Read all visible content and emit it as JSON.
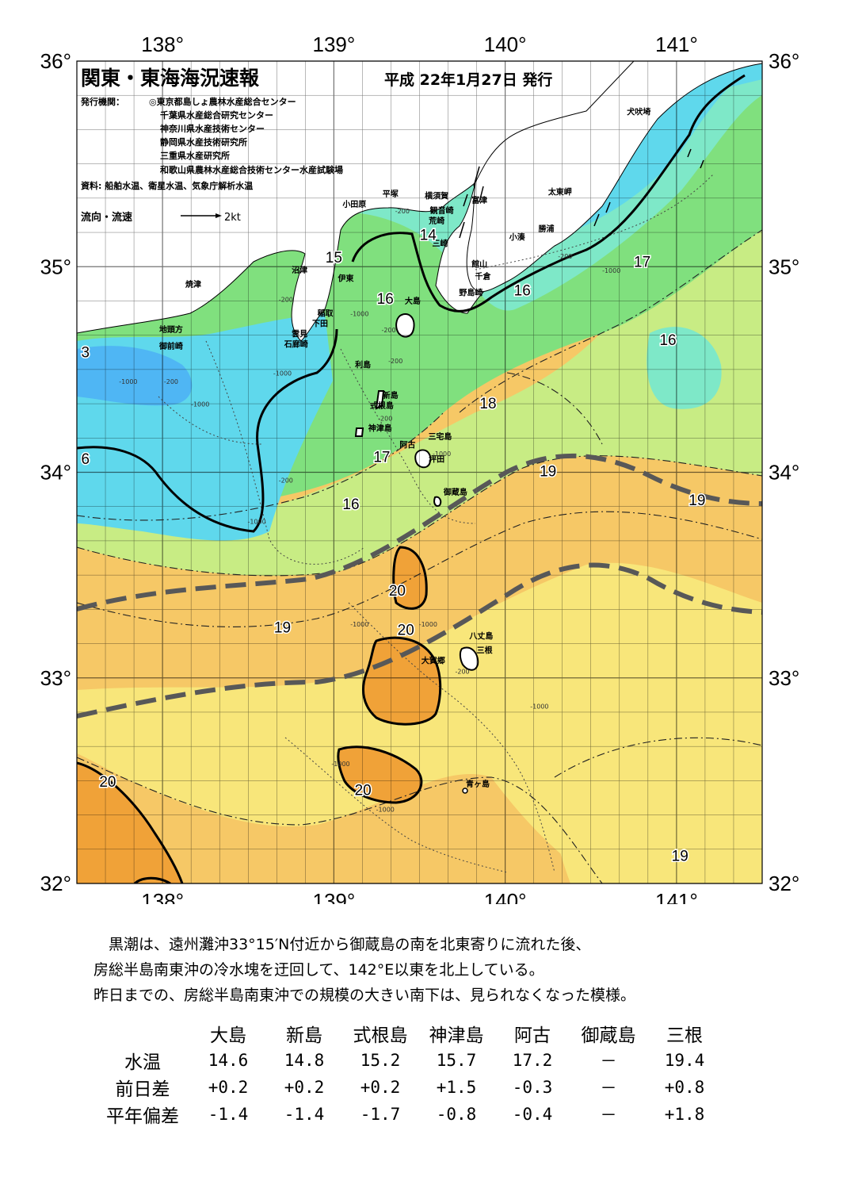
{
  "title": "関東・東海海況速報",
  "issue_date": "平成 22年1月27日 発行",
  "issuers_label": "発行機関：",
  "issuers": [
    "◎東京都島しょ農林水産総合センター",
    "千葉県水産総合研究センター",
    "神奈川県水産技術センター",
    "静岡県水産技術研究所",
    "三重県水産研究所",
    "和歌山県農林水産総合技術センター水産試験場"
  ],
  "sources": "資料: 船舶水温、衛星水温、気象庁解析水温",
  "current_legend": {
    "label": "流向・流速",
    "scale": "2kt"
  },
  "axes": {
    "lon_labels": [
      "138°",
      "139°",
      "140°",
      "141°"
    ],
    "lat_labels": [
      "36°",
      "35°",
      "34°",
      "33°",
      "32°"
    ],
    "lon_range": [
      137.5,
      141.5
    ],
    "lat_range": [
      32,
      36
    ]
  },
  "temperature_labels": [
    {
      "text": "15",
      "lon": 139.0,
      "lat": 35.02
    },
    {
      "text": "14",
      "lon": 139.55,
      "lat": 35.13
    },
    {
      "text": "16",
      "lon": 139.3,
      "lat": 34.82
    },
    {
      "text": "16",
      "lon": 140.1,
      "lat": 34.86
    },
    {
      "text": "17",
      "lon": 140.8,
      "lat": 35.0
    },
    {
      "text": "16",
      "lon": 140.95,
      "lat": 34.62
    },
    {
      "text": "18",
      "lon": 139.9,
      "lat": 34.31
    },
    {
      "text": "17",
      "lon": 139.28,
      "lat": 34.05
    },
    {
      "text": "16",
      "lon": 139.1,
      "lat": 33.82
    },
    {
      "text": "19",
      "lon": 140.25,
      "lat": 33.98
    },
    {
      "text": "19",
      "lon": 141.12,
      "lat": 33.84
    },
    {
      "text": "20",
      "lon": 139.37,
      "lat": 33.4
    },
    {
      "text": "19",
      "lon": 138.7,
      "lat": 33.22
    },
    {
      "text": "20",
      "lon": 139.42,
      "lat": 33.21
    },
    {
      "text": "20",
      "lon": 137.68,
      "lat": 32.47
    },
    {
      "text": "20",
      "lon": 139.17,
      "lat": 32.43
    },
    {
      "text": "19",
      "lon": 141.02,
      "lat": 32.11
    },
    {
      "text": "3",
      "lon": 137.55,
      "lat": 34.56
    },
    {
      "text": "6",
      "lon": 137.55,
      "lat": 34.04
    }
  ],
  "place_names": [
    {
      "text": "犬吠埼",
      "lon": 140.78,
      "lat": 35.74
    },
    {
      "text": "太東岬",
      "lon": 140.32,
      "lat": 35.35
    },
    {
      "text": "勝浦",
      "lon": 140.24,
      "lat": 35.17
    },
    {
      "text": "小湊",
      "lon": 140.07,
      "lat": 35.13
    },
    {
      "text": "富津",
      "lon": 139.85,
      "lat": 35.31
    },
    {
      "text": "横須賀",
      "lon": 139.6,
      "lat": 35.33
    },
    {
      "text": "平塚",
      "lon": 139.33,
      "lat": 35.34
    },
    {
      "text": "観音崎",
      "lon": 139.63,
      "lat": 35.26
    },
    {
      "text": "荒崎",
      "lon": 139.6,
      "lat": 35.21
    },
    {
      "text": "三崎",
      "lon": 139.62,
      "lat": 35.1
    },
    {
      "text": "小田原",
      "lon": 139.12,
      "lat": 35.29
    },
    {
      "text": "館山",
      "lon": 139.85,
      "lat": 35.0
    },
    {
      "text": "千倉",
      "lon": 139.87,
      "lat": 34.94
    },
    {
      "text": "野島崎",
      "lon": 139.8,
      "lat": 34.86
    },
    {
      "text": "大島",
      "lon": 139.46,
      "lat": 34.82
    },
    {
      "text": "沼津",
      "lon": 138.8,
      "lat": 34.97
    },
    {
      "text": "伊東",
      "lon": 139.07,
      "lat": 34.93
    },
    {
      "text": "焼津",
      "lon": 138.18,
      "lat": 34.9
    },
    {
      "text": "稲取",
      "lon": 138.95,
      "lat": 34.76
    },
    {
      "text": "下田",
      "lon": 138.92,
      "lat": 34.71
    },
    {
      "text": "雲見",
      "lon": 138.8,
      "lat": 34.66
    },
    {
      "text": "石廊崎",
      "lon": 138.78,
      "lat": 34.61
    },
    {
      "text": "地頭方",
      "lon": 138.05,
      "lat": 34.68
    },
    {
      "text": "御前崎",
      "lon": 138.05,
      "lat": 34.6
    },
    {
      "text": "利島",
      "lon": 139.17,
      "lat": 34.51
    },
    {
      "text": "新島",
      "lon": 139.33,
      "lat": 34.36
    },
    {
      "text": "式根島",
      "lon": 139.28,
      "lat": 34.31
    },
    {
      "text": "神津島",
      "lon": 139.27,
      "lat": 34.2
    },
    {
      "text": "三宅島",
      "lon": 139.62,
      "lat": 34.16
    },
    {
      "text": "阿古",
      "lon": 139.43,
      "lat": 34.12
    },
    {
      "text": "坪田",
      "lon": 139.6,
      "lat": 34.05
    },
    {
      "text": "御蔵島",
      "lon": 139.71,
      "lat": 33.89
    },
    {
      "text": "八丈島",
      "lon": 139.86,
      "lat": 33.19
    },
    {
      "text": "三根",
      "lon": 139.88,
      "lat": 33.12
    },
    {
      "text": "大賀郷",
      "lon": 139.58,
      "lat": 33.07
    },
    {
      "text": "青ヶ島",
      "lon": 139.84,
      "lat": 32.47
    }
  ],
  "depth_labels": [
    {
      "text": "-200",
      "lon": 139.4,
      "lat": 35.26
    },
    {
      "text": "-200",
      "lon": 140.35,
      "lat": 35.04
    },
    {
      "text": "-1000",
      "lon": 140.62,
      "lat": 34.97
    },
    {
      "text": "-200",
      "lon": 138.72,
      "lat": 34.83
    },
    {
      "text": "-200",
      "lon": 139.32,
      "lat": 34.68
    },
    {
      "text": "-200",
      "lon": 139.36,
      "lat": 34.53
    },
    {
      "text": "-1000",
      "lon": 139.15,
      "lat": 34.76
    },
    {
      "text": "-1000",
      "lon": 137.8,
      "lat": 34.43
    },
    {
      "text": "-200",
      "lon": 138.05,
      "lat": 34.43
    },
    {
      "text": "-1000",
      "lon": 138.22,
      "lat": 34.32
    },
    {
      "text": "-1000",
      "lon": 138.7,
      "lat": 34.47
    },
    {
      "text": "-1000",
      "lon": 139.63,
      "lat": 34.08
    },
    {
      "text": "-200",
      "lon": 138.72,
      "lat": 33.95
    },
    {
      "text": "-1000",
      "lon": 138.55,
      "lat": 33.75
    },
    {
      "text": "-200",
      "lon": 139.3,
      "lat": 34.25
    },
    {
      "text": "-1000",
      "lon": 139.15,
      "lat": 33.25
    },
    {
      "text": "-1000",
      "lon": 139.55,
      "lat": 33.25
    },
    {
      "text": "-200",
      "lon": 139.75,
      "lat": 33.02
    },
    {
      "text": "-1000",
      "lon": 140.2,
      "lat": 32.85
    },
    {
      "text": "-1000",
      "lon": 139.04,
      "lat": 32.57
    },
    {
      "text": "-1000",
      "lon": 139.3,
      "lat": 32.35
    }
  ],
  "description": [
    "黒潮は、遠州灘沖33°15′N付近から御蔵島の南を北東寄りに流れた後、",
    "房総半島南東沖の冷水塊を迂回して、142°E以東を北上している。",
    "昨日までの、房総半島南東沖での規模の大きい南下は、見られなくなった模様。"
  ],
  "table": {
    "columns": [
      "大島",
      "新島",
      "式根島",
      "神津島",
      "阿古",
      "御蔵島",
      "三根"
    ],
    "rows": [
      {
        "label": "水温",
        "values": [
          "14.6",
          "14.8",
          "15.2",
          "15.7",
          "17.2",
          "－",
          "19.4"
        ]
      },
      {
        "label": "前日差",
        "values": [
          "+0.2",
          "+0.2",
          "+0.2",
          "+1.5",
          "-0.3",
          "－",
          "+0.8"
        ]
      },
      {
        "label": "平年偏差",
        "values": [
          "-1.4",
          "-1.4",
          "-1.7",
          "-0.8",
          "-0.4",
          "－",
          "+1.8"
        ]
      }
    ]
  },
  "colors": {
    "cold": "#4fb6f4",
    "cyan": "#5fd8ec",
    "teal": "#7ee8c8",
    "green": "#80e07e",
    "yellowgreen": "#c8ec84",
    "yellow": "#f8e67a",
    "lightorange": "#f6c866",
    "orange": "#f2b24e",
    "deeporange": "#f0a238",
    "kuroshio_axis": "#585858"
  }
}
